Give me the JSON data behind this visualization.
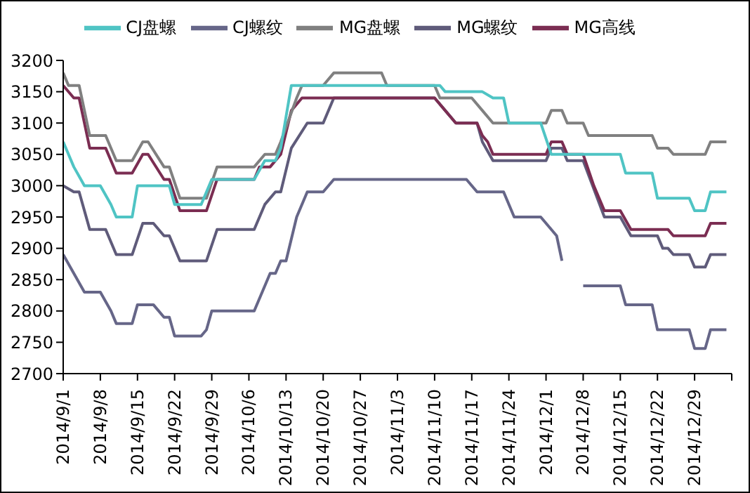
{
  "chart_data": {
    "type": "line",
    "legend": "top",
    "grid": false,
    "marker": "none",
    "line_style": "solid",
    "xlim": [
      "2014-09-01",
      "2015-01-05"
    ],
    "xticks": [
      {
        "value": "2014-09-01",
        "label": "2014/9/1"
      },
      {
        "value": "2014-09-08",
        "label": "2014/9/8"
      },
      {
        "value": "2014-09-15",
        "label": "2014/9/15"
      },
      {
        "value": "2014-09-22",
        "label": "2014/9/22"
      },
      {
        "value": "2014-09-29",
        "label": "2014/9/29"
      },
      {
        "value": "2014-10-06",
        "label": "2014/10/6"
      },
      {
        "value": "2014-10-13",
        "label": "2014/10/13"
      },
      {
        "value": "2014-10-20",
        "label": "2014/10/20"
      },
      {
        "value": "2014-10-27",
        "label": "2014/10/27"
      },
      {
        "value": "2014-11-03",
        "label": "2014/11/3"
      },
      {
        "value": "2014-11-10",
        "label": "2014/11/10"
      },
      {
        "value": "2014-11-17",
        "label": "2014/11/17"
      },
      {
        "value": "2014-11-24",
        "label": "2014/11/24"
      },
      {
        "value": "2014-12-01",
        "label": "2014/12/1"
      },
      {
        "value": "2014-12-08",
        "label": "2014/12/8"
      },
      {
        "value": "2014-12-15",
        "label": "2014/12/15"
      },
      {
        "value": "2014-12-22",
        "label": "2014/12/22"
      },
      {
        "value": "2014-12-29",
        "label": "2014/12/29"
      },
      {
        "value": "2015-01-05",
        "label": null
      }
    ],
    "ylim": [
      2700,
      3200
    ],
    "yticks": [
      2700,
      2750,
      2800,
      2850,
      2900,
      2950,
      3000,
      3050,
      3100,
      3150,
      3200
    ],
    "series": [
      {
        "name": "MG螺纹",
        "color": "#5f5b7a",
        "x": [
          "2014-09-01",
          "2014-09-03",
          "2014-09-04",
          "2014-09-06",
          "2014-09-09",
          "2014-09-11",
          "2014-09-14",
          "2014-09-16",
          "2014-09-18",
          "2014-09-20",
          "2014-09-21",
          "2014-09-23",
          "2014-09-28",
          "2014-09-30",
          "2014-10-07",
          "2014-10-09",
          "2014-10-11",
          "2014-10-12",
          "2014-10-14",
          "2014-10-17",
          "2014-10-20",
          "2014-10-22",
          "2014-11-10",
          "2014-11-12",
          "2014-11-14",
          "2014-11-18",
          "2014-11-19",
          "2014-11-21",
          "2014-12-01",
          "2014-12-02",
          "2014-12-04",
          "2014-12-05",
          "2014-12-08",
          "2014-12-12",
          "2014-12-15",
          "2014-12-17",
          "2014-12-22",
          "2014-12-23",
          "2014-12-24",
          "2014-12-25",
          "2014-12-28",
          "2014-12-29",
          "2014-12-31",
          "2015-01-01",
          "2015-01-04"
        ],
        "values": [
          3000,
          2990,
          2990,
          2930,
          2930,
          2890,
          2890,
          2940,
          2940,
          2920,
          2920,
          2880,
          2880,
          2930,
          2930,
          2970,
          2990,
          2990,
          3060,
          3100,
          3100,
          3140,
          3140,
          3120,
          3100,
          3100,
          3070,
          3040,
          3040,
          3060,
          3060,
          3040,
          3040,
          2950,
          2950,
          2920,
          2920,
          2900,
          2900,
          2890,
          2890,
          2870,
          2870,
          2890,
          2890
        ]
      },
      {
        "name": "MG高线",
        "color": "#7b2d52",
        "x": [
          "2014-09-01",
          "2014-09-03",
          "2014-09-04",
          "2014-09-06",
          "2014-09-09",
          "2014-09-11",
          "2014-09-14",
          "2014-09-16",
          "2014-09-17",
          "2014-09-20",
          "2014-09-21",
          "2014-09-23",
          "2014-09-28",
          "2014-09-30",
          "2014-10-07",
          "2014-10-08",
          "2014-10-10",
          "2014-10-12",
          "2014-10-14",
          "2014-10-16",
          "2014-11-10",
          "2014-11-12",
          "2014-11-14",
          "2014-11-18",
          "2014-11-19",
          "2014-11-20",
          "2014-11-21",
          "2014-12-01",
          "2014-12-02",
          "2014-12-04",
          "2014-12-05",
          "2014-12-08",
          "2014-12-10",
          "2014-12-12",
          "2014-12-15",
          "2014-12-17",
          "2014-12-24",
          "2014-12-25",
          "2014-12-31",
          "2015-01-01",
          "2015-01-04"
        ],
        "values": [
          3160,
          3140,
          3140,
          3060,
          3060,
          3020,
          3020,
          3050,
          3050,
          3010,
          3010,
          2960,
          2960,
          3010,
          3010,
          3030,
          3030,
          3050,
          3120,
          3140,
          3140,
          3120,
          3100,
          3100,
          3080,
          3070,
          3050,
          3050,
          3070,
          3070,
          3050,
          3050,
          3000,
          2960,
          2960,
          2930,
          2930,
          2920,
          2920,
          2940,
          2940
        ]
      },
      {
        "name": "MG盘螺",
        "color": "#808080",
        "x": [
          "2014-09-01",
          "2014-09-02",
          "2014-09-04",
          "2014-09-06",
          "2014-09-09",
          "2014-09-11",
          "2014-09-14",
          "2014-09-16",
          "2014-09-17",
          "2014-09-20",
          "2014-09-21",
          "2014-09-23",
          "2014-09-28",
          "2014-09-30",
          "2014-10-07",
          "2014-10-09",
          "2014-10-11",
          "2014-10-12",
          "2014-10-15",
          "2014-10-16",
          "2014-10-20",
          "2014-10-22",
          "2014-10-31",
          "2014-11-01",
          "2014-11-10",
          "2014-11-11",
          "2014-11-17",
          "2014-11-19",
          "2014-11-21",
          "2014-12-01",
          "2014-12-02",
          "2014-12-04",
          "2014-12-05",
          "2014-12-08",
          "2014-12-09",
          "2014-12-21",
          "2014-12-22",
          "2014-12-24",
          "2014-12-25",
          "2014-12-31",
          "2015-01-01",
          "2015-01-04"
        ],
        "values": [
          3180,
          3160,
          3160,
          3080,
          3080,
          3040,
          3040,
          3070,
          3070,
          3030,
          3030,
          2980,
          2980,
          3030,
          3030,
          3050,
          3050,
          3070,
          3140,
          3160,
          3160,
          3180,
          3180,
          3160,
          3160,
          3140,
          3140,
          3120,
          3100,
          3100,
          3120,
          3120,
          3100,
          3100,
          3080,
          3080,
          3060,
          3060,
          3050,
          3050,
          3070,
          3070
        ]
      },
      {
        "name": "CJ螺纹",
        "color": "#666688",
        "x": [
          "2014-09-01",
          "2014-09-03",
          "2014-09-05",
          "2014-09-08",
          "2014-09-10",
          "2014-09-11",
          "2014-09-14",
          "2014-09-15",
          "2014-09-18",
          "2014-09-20",
          "2014-09-21",
          "2014-09-22",
          "2014-09-27",
          "2014-09-28",
          "2014-09-29",
          "2014-10-07",
          "2014-10-10",
          "2014-10-11",
          "2014-10-12",
          "2014-10-13",
          "2014-10-15",
          "2014-10-17",
          "2014-10-20",
          "2014-10-22",
          "2014-11-16",
          "2014-11-18",
          "2014-11-23",
          "2014-11-25",
          "2014-11-30",
          "2014-12-03",
          "2014-12-04",
          "2014-12-06",
          "2014-12-08",
          "2014-12-15",
          "2014-12-16",
          "2014-12-21",
          "2014-12-22",
          "2014-12-28",
          "2014-12-29",
          "2014-12-31",
          "2015-01-01",
          "2015-01-04"
        ],
        "values": [
          2890,
          2860,
          2830,
          2830,
          2800,
          2780,
          2780,
          2810,
          2810,
          2790,
          2790,
          2760,
          2760,
          2770,
          2800,
          2800,
          2860,
          2860,
          2880,
          2880,
          2950,
          2990,
          2990,
          3010,
          3010,
          2990,
          2990,
          2950,
          2950,
          2920,
          2880,
          null,
          2840,
          2840,
          2810,
          2810,
          2770,
          2770,
          2740,
          2740,
          2770,
          2770
        ]
      },
      {
        "name": "CJ盘螺",
        "color": "#4fc4c4",
        "x": [
          "2014-09-01",
          "2014-09-03",
          "2014-09-05",
          "2014-09-08",
          "2014-09-10",
          "2014-09-11",
          "2014-09-14",
          "2014-09-15",
          "2014-09-21",
          "2014-09-22",
          "2014-09-27",
          "2014-09-29",
          "2014-10-07",
          "2014-10-09",
          "2014-10-11",
          "2014-10-12",
          "2014-10-14",
          "2014-11-11",
          "2014-11-12",
          "2014-11-19",
          "2014-11-21",
          "2014-11-23",
          "2014-11-24",
          "2014-11-30",
          "2014-12-02",
          "2014-12-15",
          "2014-12-16",
          "2014-12-21",
          "2014-12-22",
          "2014-12-28",
          "2014-12-29",
          "2014-12-31",
          "2015-01-01",
          "2015-01-04"
        ],
        "values": [
          3070,
          3030,
          3000,
          3000,
          2970,
          2950,
          2950,
          3000,
          3000,
          2970,
          2970,
          3010,
          3010,
          3040,
          3040,
          3060,
          3160,
          3160,
          3150,
          3150,
          3140,
          3140,
          3100,
          3100,
          3050,
          3050,
          3020,
          3020,
          2980,
          2980,
          2960,
          2960,
          2990,
          2990
        ]
      }
    ]
  }
}
